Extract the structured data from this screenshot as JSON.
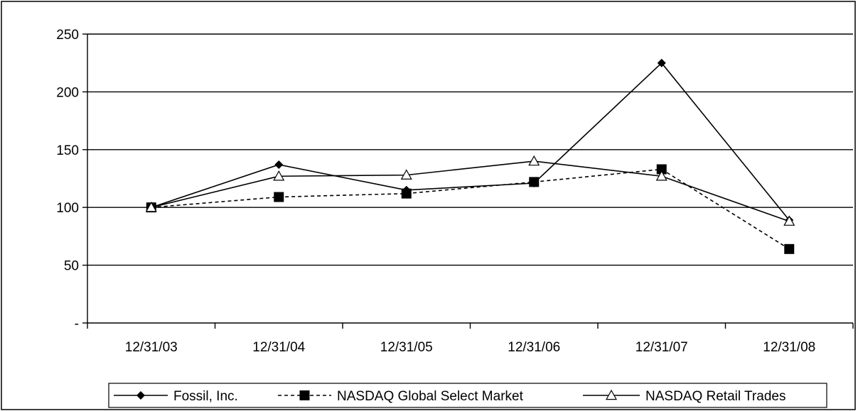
{
  "chart_data": {
    "type": "line",
    "categories": [
      "12/31/03",
      "12/31/04",
      "12/31/05",
      "12/31/06",
      "12/31/07",
      "12/31/08"
    ],
    "y_tick_labels": [
      "-",
      "50",
      "100",
      "150",
      "200",
      "250"
    ],
    "y_ticks": [
      0,
      50,
      100,
      150,
      200,
      250
    ],
    "ylim": [
      0,
      250
    ],
    "grid": true,
    "legend_position": "bottom",
    "series": [
      {
        "name": "Fossil, Inc.",
        "marker": "diamond",
        "dash": "solid",
        "values": [
          100,
          137,
          115,
          121,
          225,
          89
        ]
      },
      {
        "name": "NASDAQ Global Select Market",
        "marker": "square",
        "dash": "dashed",
        "values": [
          100,
          109,
          112,
          122,
          133,
          64
        ]
      },
      {
        "name": "NASDAQ Retail Trades",
        "marker": "triangle",
        "dash": "solid",
        "values": [
          100,
          127,
          128,
          140,
          127,
          88
        ]
      }
    ]
  }
}
